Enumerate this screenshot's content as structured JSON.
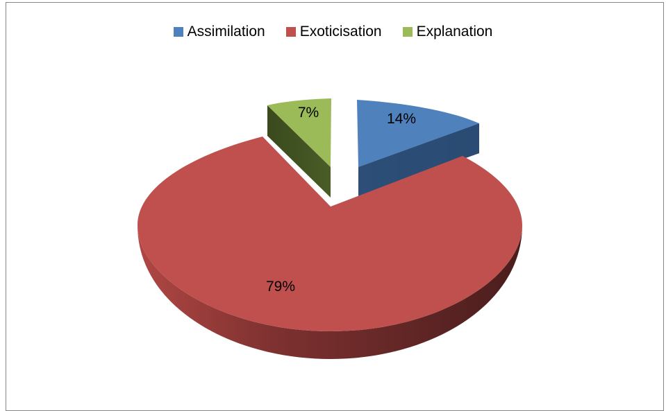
{
  "chart_data": {
    "type": "pie",
    "variant": "3d-exploded",
    "legend_position": "top",
    "categories": [
      "Assimilation",
      "Exoticisation",
      "Explanation"
    ],
    "values": [
      14,
      79,
      7
    ],
    "data_labels": [
      "14%",
      "79%",
      "7%"
    ],
    "colors": [
      "#4F81BD",
      "#C0504D",
      "#9BBB59"
    ],
    "side_colors": [
      "#2C4D75",
      "#4E1E1E",
      "#3B4820"
    ]
  }
}
